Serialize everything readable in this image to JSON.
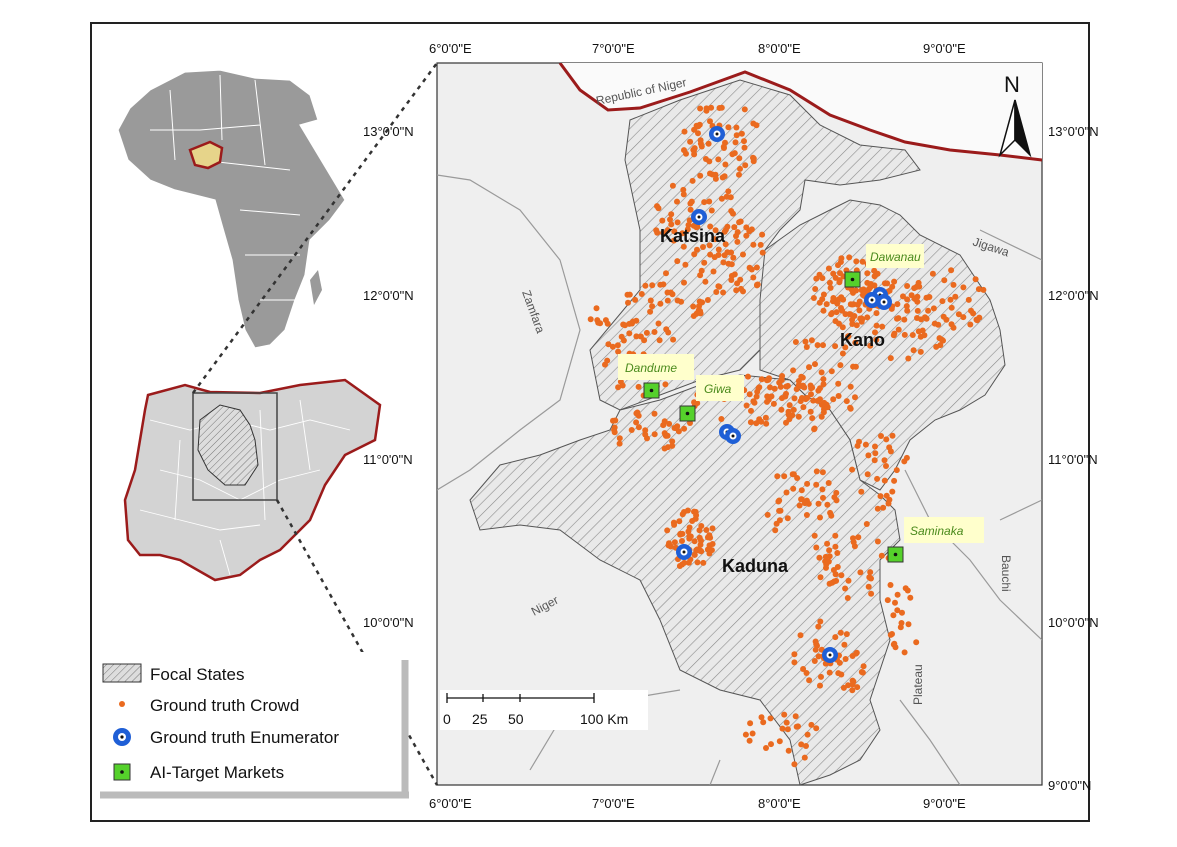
{
  "map": {
    "top_longitude_labels": [
      "6°0'0\"E",
      "7°0'0\"E",
      "8°0'0\"E",
      "9°0'0\"E"
    ],
    "bottom_longitude_labels": [
      "6°0'0\"E",
      "7°0'0\"E",
      "8°0'0\"E",
      "9°0'0\"E"
    ],
    "left_latitude_labels": [
      "13°0'0\"N",
      "12°0'0\"N",
      "11°0'0\"N",
      "10°0'0\"N"
    ],
    "right_latitude_labels": [
      "13°0'0\"N",
      "12°0'0\"N",
      "11°0'0\"N",
      "10°0'0\"N",
      "9°0'0\"N"
    ],
    "north_arrow_label": "N",
    "colors": {
      "focal_state_fill": "#e8e8e8",
      "background_land": "#efefef",
      "border_red": "#9b1b1b",
      "crowd_dot": "#ea6a1f",
      "enumerator_outer": "#1f5fd6",
      "market_fill": "#55d12b",
      "market_label": "#4a8a1c"
    }
  },
  "states": {
    "katsina": "Katsina",
    "kano": "Kano",
    "kaduna": "Kaduna"
  },
  "neighbors": {
    "niger_republic": "Republic of Niger",
    "jigawa": "Jigawa",
    "zamfara": "Zamfara",
    "niger": "Niger",
    "bauchi": "Bauchi",
    "plateau": "Plateau"
  },
  "markets": [
    {
      "name": "Dawanau"
    },
    {
      "name": "Dandume"
    },
    {
      "name": "Giwa"
    },
    {
      "name": "Saminaka"
    }
  ],
  "scale_bar": {
    "labels": [
      "0",
      "25",
      "50",
      "100 Km"
    ]
  },
  "legend": {
    "items": [
      {
        "label": "Focal States"
      },
      {
        "label": "Ground truth Crowd"
      },
      {
        "label": "Ground truth Enumerator"
      },
      {
        "label": "AI-Target Markets"
      }
    ]
  }
}
